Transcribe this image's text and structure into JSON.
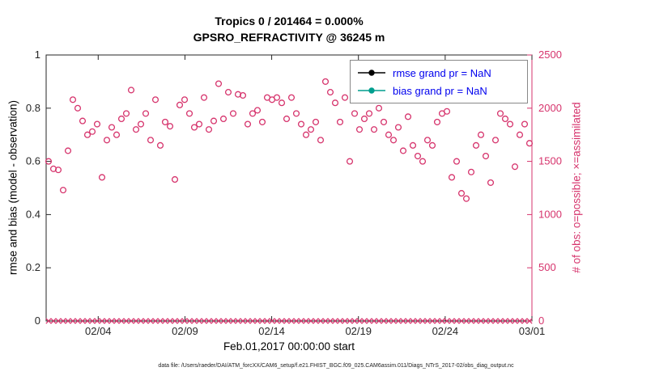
{
  "chart": {
    "title": "Tropics 0 / 201464 = 0.000%",
    "subtitle": "GPSRO_REFRACTIVITY @ 36245 m",
    "xlabel": "Feb.01,2017 00:00:00 start",
    "ylabel_left": "rmse and bias (model - observation)",
    "ylabel_right": "# of obs: o=possible; ×=assimilated",
    "caption": "data file: /Users/raeder/DAI/ATM_forcXX/CAM6_setup/f.e21.FHIST_BGC.f09_025.CAM6assim.011/Diags_NTrS_2017-02/obs_diag_output.nc",
    "legend": [
      {
        "label": "rmse grand pr = NaN",
        "color": "#000000"
      },
      {
        "label": "bias grand pr = NaN",
        "color": "#009e8e"
      }
    ],
    "colors": {
      "obs_pink": "#d6336c",
      "legend_text": "#0000ee",
      "axis": "#262626"
    }
  },
  "chart_data": {
    "type": "scatter",
    "title": "Tropics 0 / 201464 = 0.000%",
    "subtitle": "GPSRO_REFRACTIVITY @ 36245 m",
    "x_range_days": [
      0,
      28
    ],
    "x_tick_days": [
      3,
      8,
      13,
      18,
      23,
      28
    ],
    "x_tick_labels": [
      "02/04",
      "02/09",
      "02/14",
      "02/19",
      "02/24",
      "03/01"
    ],
    "ylim_left": [
      0,
      1
    ],
    "y_ticks_left": [
      0,
      0.2,
      0.4,
      0.6,
      0.8,
      1
    ],
    "ylim_right": [
      0,
      2500
    ],
    "y_ticks_right": [
      0,
      500,
      1000,
      1500,
      2000,
      2500
    ],
    "grid": false,
    "legend_position": "top-right-inside",
    "series": [
      {
        "name": "possible",
        "marker": "circle",
        "axis": "right",
        "values": [
          1500,
          1430,
          1420,
          1230,
          1600,
          2080,
          2000,
          1880,
          1750,
          1780,
          1850,
          1350,
          1700,
          1820,
          1750,
          1900,
          1950,
          2170,
          1800,
          1850,
          1950,
          1700,
          2080,
          1650,
          1870,
          1830,
          1330,
          2030,
          2080,
          1950,
          1820,
          1850,
          2100,
          1800,
          1880,
          2230,
          1900,
          2150,
          1950,
          2130,
          2120,
          1850,
          1950,
          1980,
          1870,
          2100,
          2080,
          2100,
          2050,
          1900,
          2100,
          1950,
          1850,
          1750,
          1800,
          1870,
          1700,
          2250,
          2150,
          2050,
          1870,
          2100,
          1500,
          1950,
          1800,
          1900,
          1950,
          1800,
          2000,
          1870,
          1750,
          1700,
          1820,
          1600,
          1920,
          1650,
          1550,
          1500,
          1700,
          1650,
          1870,
          1950,
          1970,
          1350,
          1500,
          1200,
          1150,
          1400,
          1650,
          1750,
          1550,
          1300,
          1700,
          1950,
          1900,
          1850,
          1450,
          1750,
          1850,
          1670
        ]
      },
      {
        "name": "assimilated",
        "marker": "x",
        "axis": "right",
        "constant_value": 0
      }
    ]
  }
}
